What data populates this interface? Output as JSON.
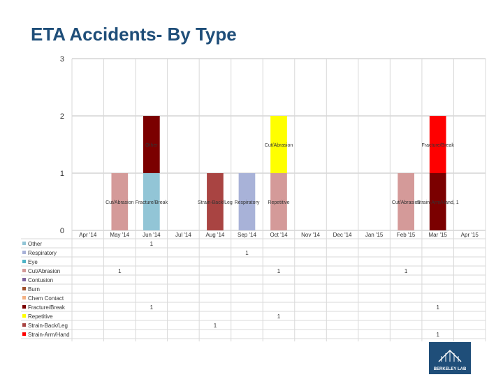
{
  "page": {
    "title": "ETA Accidents- By Type"
  },
  "logo": {
    "text": "BERKELEY LAB"
  },
  "chart_data": {
    "type": "stacked-bar",
    "title": "ETA Accidents- By Type",
    "categories": [
      "Apr '14",
      "May '14",
      "Jun '14",
      "Jul '14",
      "Aug '14",
      "Sep '14",
      "Oct '14",
      "Nov '14",
      "Dec '14",
      "Jan '15",
      "Feb '15",
      "Mar '15",
      "Apr '15"
    ],
    "ylim": [
      0,
      3
    ],
    "yticks": [
      "0",
      "1",
      "2",
      "3"
    ],
    "series": [
      {
        "name": "Other",
        "color": "#92c5d6",
        "values": [
          0,
          0,
          1,
          0,
          0,
          0,
          0,
          0,
          0,
          0,
          0,
          0,
          0
        ]
      },
      {
        "name": "Respiratory",
        "color": "#a8b2d8",
        "values": [
          0,
          0,
          0,
          0,
          0,
          1,
          0,
          0,
          0,
          0,
          0,
          0,
          0
        ]
      },
      {
        "name": "Eye",
        "color": "#4fb3c6",
        "values": [
          0,
          0,
          0,
          0,
          0,
          0,
          0,
          0,
          0,
          0,
          0,
          0,
          0
        ]
      },
      {
        "name": "Cut/Abrasion",
        "color": "#d49a99",
        "values": [
          0,
          1,
          0,
          0,
          0,
          0,
          1,
          0,
          0,
          0,
          1,
          0,
          0
        ]
      },
      {
        "name": "Contusion",
        "color": "#7e649e",
        "values": [
          0,
          0,
          0,
          0,
          0,
          0,
          0,
          0,
          0,
          0,
          0,
          0,
          0
        ]
      },
      {
        "name": "Burn",
        "color": "#a0522d",
        "values": [
          0,
          0,
          0,
          0,
          0,
          0,
          0,
          0,
          0,
          0,
          0,
          0,
          0
        ]
      },
      {
        "name": "Chem Contact",
        "color": "#f4b183",
        "values": [
          0,
          0,
          0,
          0,
          0,
          0,
          0,
          0,
          0,
          0,
          0,
          0,
          0
        ]
      },
      {
        "name": "Fracture/Break",
        "color": "#7b0000",
        "values": [
          0,
          0,
          1,
          0,
          0,
          0,
          0,
          0,
          0,
          0,
          0,
          1,
          0
        ]
      },
      {
        "name": "Repetitive",
        "color": "#ffff00",
        "values": [
          0,
          0,
          0,
          0,
          0,
          0,
          1,
          0,
          0,
          0,
          0,
          0,
          0
        ]
      },
      {
        "name": "Strain-Back/Leg",
        "color": "#a94442",
        "values": [
          0,
          0,
          0,
          0,
          1,
          0,
          0,
          0,
          0,
          0,
          0,
          0,
          0
        ]
      },
      {
        "name": "Strain-Arm/Hand",
        "color": "#ff0000",
        "values": [
          0,
          0,
          0,
          0,
          0,
          0,
          0,
          0,
          0,
          0,
          0,
          1,
          0
        ]
      }
    ],
    "bar_labels": [
      {
        "text": "Cut/Abrasion",
        "category": "May '14",
        "value": 0.5
      },
      {
        "text": "Fracture/Break",
        "category": "Jun '14",
        "value": 0.5
      },
      {
        "text": "Other",
        "category": "Jun '14",
        "value": 1.5
      },
      {
        "text": "Strain-Back/Leg",
        "category": "Aug '14",
        "value": 0.5
      },
      {
        "text": "Respiratory",
        "category": "Sep '14",
        "value": 0.5
      },
      {
        "text": "Repetitive",
        "category": "Oct '14",
        "value": 0.5
      },
      {
        "text": "Cut/Abrasion",
        "category": "Oct '14",
        "value": 1.5
      },
      {
        "text": "Cut/Abrasion",
        "category": "Feb '15",
        "value": 0.5
      },
      {
        "text": "Strain-Arm/Hand, 1",
        "category": "Mar '15",
        "value": 0.5
      },
      {
        "text": "Fracture/Break",
        "category": "Mar '15",
        "value": 1.5
      }
    ],
    "table_values": [
      {
        "series": "Other",
        "category": "Jun '14",
        "text": "1"
      },
      {
        "series": "Respiratory",
        "category": "Sep '14",
        "text": "1"
      },
      {
        "series": "Cut/Abrasion",
        "category": "May '14",
        "text": "1"
      },
      {
        "series": "Cut/Abrasion",
        "category": "Oct '14",
        "text": "1"
      },
      {
        "series": "Cut/Abrasion",
        "category": "Feb '15",
        "text": "1"
      },
      {
        "series": "Fracture/Break",
        "category": "Jun '14",
        "text": "1"
      },
      {
        "series": "Fracture/Break",
        "category": "Mar '15",
        "text": "1"
      },
      {
        "series": "Repetitive",
        "category": "Oct '14",
        "text": "1"
      },
      {
        "series": "Strain-Back/Leg",
        "category": "Aug '14",
        "text": "1"
      },
      {
        "series": "Strain-Arm/Hand",
        "category": "Mar '15",
        "text": "1"
      }
    ]
  }
}
